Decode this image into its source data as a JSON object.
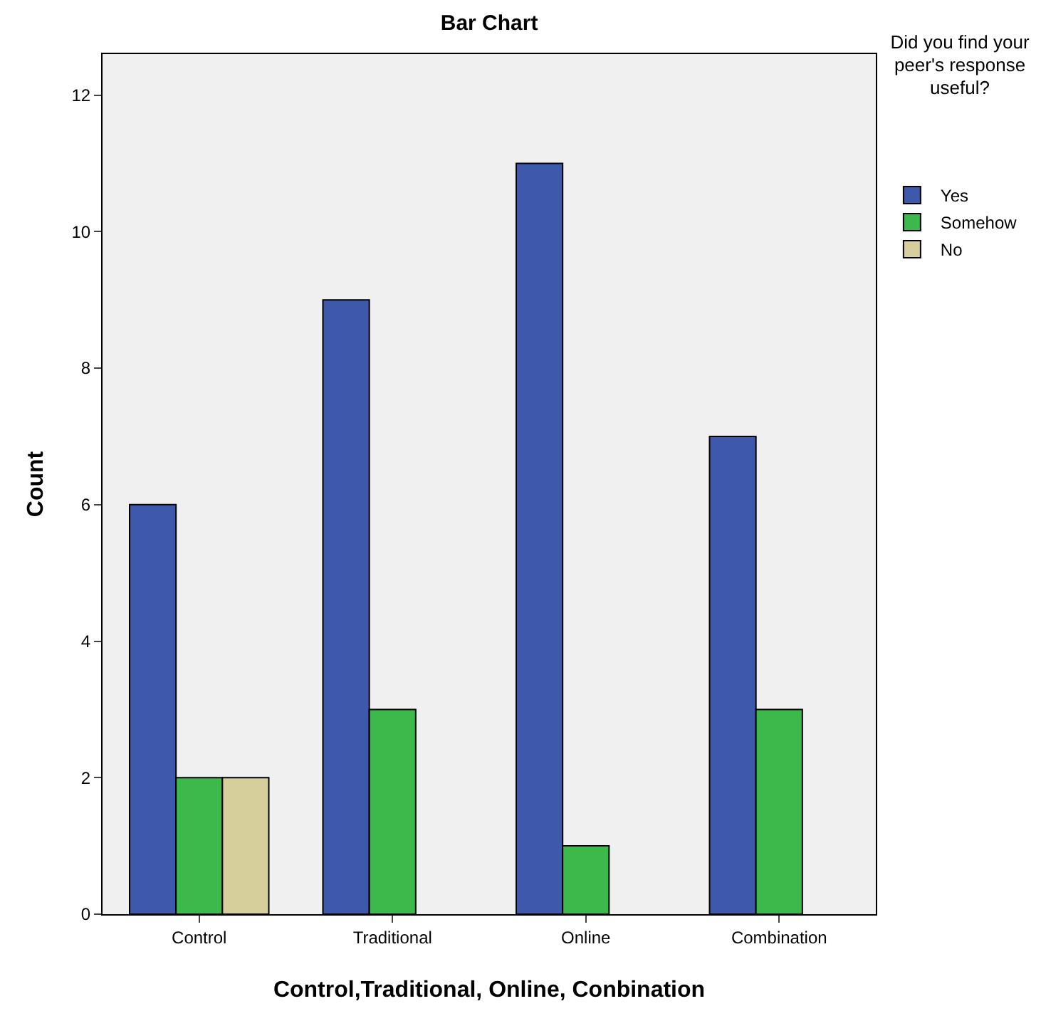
{
  "chart_data": {
    "type": "bar",
    "title": "Bar Chart",
    "xlabel": "Control,Traditional, Online, Conbination",
    "ylabel": "Count",
    "legend_title": "Did you find your peer's response useful?",
    "categories": [
      "Control",
      "Traditional",
      "Online",
      "Combination"
    ],
    "series": [
      {
        "name": "Yes",
        "color": "#3e58ac",
        "values": [
          6,
          9,
          11,
          7
        ]
      },
      {
        "name": "Somehow",
        "color": "#3cb94a",
        "values": [
          2,
          3,
          1,
          3
        ]
      },
      {
        "name": "No",
        "color": "#d6cf9c",
        "values": [
          2,
          null,
          null,
          null
        ]
      }
    ],
    "ylim": [
      0,
      12.6
    ],
    "yticks": [
      0,
      2,
      4,
      6,
      8,
      10,
      12
    ],
    "grid": false,
    "legend": "top right"
  }
}
